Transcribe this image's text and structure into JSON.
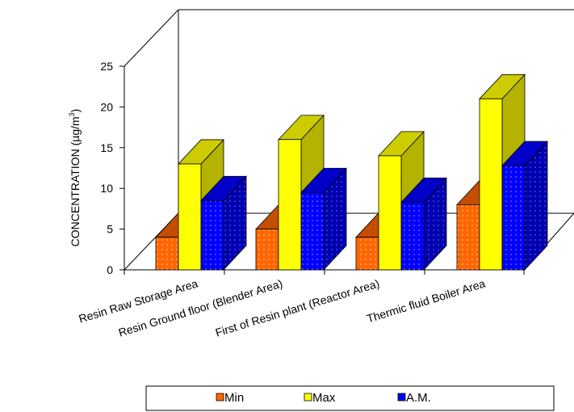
{
  "chart_data": {
    "type": "bar",
    "style": "3d-clustered-column",
    "categories": [
      "Resin Raw Storage Area",
      "Resin Ground floor (Blender Area)",
      "First of Resin plant (Reactor Area)",
      "Thermic fluid Boiler Area"
    ],
    "series": [
      {
        "name": "Min",
        "values": [
          4,
          5,
          4,
          8
        ],
        "color": "#FF6600",
        "pattern": "dots"
      },
      {
        "name": "Max",
        "values": [
          13,
          16,
          14,
          21
        ],
        "color": "#FFFF00",
        "pattern": "solid"
      },
      {
        "name": "A.M.",
        "values": [
          8.5,
          9.5,
          8.3,
          12.8
        ],
        "color": "#0000FF",
        "pattern": "dots"
      }
    ],
    "ylabel": "CONCENTRATION (µg/m³)",
    "ylabel_main": "CONCENTRATION (µg/m",
    "ylabel_sup": "3",
    "ylabel_tail": ")",
    "ylim": [
      0,
      25
    ],
    "yticks": [
      "0",
      "5",
      "10",
      "15",
      "20",
      "25"
    ],
    "grid": false,
    "legend_position": "bottom"
  }
}
